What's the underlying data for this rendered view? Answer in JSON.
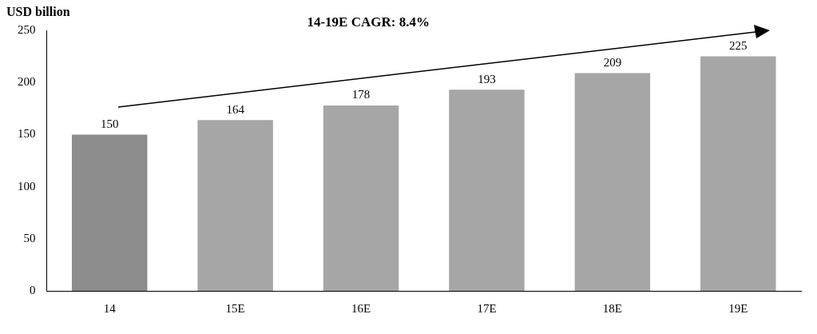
{
  "chart_data": {
    "type": "bar",
    "ylabel": "USD billion",
    "annotations": [
      "14-19E CAGR: 8.4%"
    ],
    "categories": [
      "14",
      "15E",
      "16E",
      "17E",
      "18E",
      "19E"
    ],
    "values": [
      150,
      164,
      178,
      193,
      209,
      225
    ],
    "colors": [
      "#8c8c8c",
      "#a6a6a6",
      "#a6a6a6",
      "#a6a6a6",
      "#a6a6a6",
      "#a6a6a6"
    ],
    "ylim": [
      0,
      250
    ],
    "yticks": [
      0,
      50,
      100,
      150,
      200,
      250
    ],
    "grid": false,
    "legend": false,
    "data_labels": true
  }
}
